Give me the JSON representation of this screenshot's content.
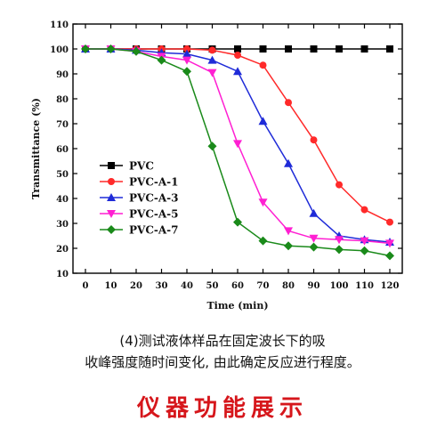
{
  "chart_data": {
    "type": "line",
    "xlabel": "Time (min)",
    "ylabel": "Transmittance (%)",
    "xlim": [
      0,
      120
    ],
    "ylim": [
      10,
      110
    ],
    "x_ticks": [
      0,
      10,
      20,
      30,
      40,
      50,
      60,
      70,
      80,
      90,
      100,
      110,
      120
    ],
    "y_ticks": [
      10,
      20,
      30,
      40,
      50,
      60,
      70,
      80,
      90,
      100,
      110
    ],
    "grid": false,
    "legend_position": "center-left",
    "x": [
      0,
      10,
      20,
      30,
      40,
      50,
      60,
      70,
      80,
      90,
      100,
      110,
      120
    ],
    "series": [
      {
        "name": "PVC",
        "color": "#000000",
        "marker": "square",
        "values": [
          100,
          100,
          100,
          100,
          100,
          100,
          100,
          100,
          100,
          100,
          100,
          100,
          100
        ]
      },
      {
        "name": "PVC-A-1",
        "color": "#ff2a2a",
        "marker": "circle",
        "values": [
          100,
          100,
          100,
          100,
          100,
          99.5,
          97.5,
          93.5,
          78.5,
          63.5,
          45.5,
          35.5,
          30.5
        ]
      },
      {
        "name": "PVC-A-3",
        "color": "#1f2bd8",
        "marker": "triangle-up",
        "values": [
          100,
          100,
          99.5,
          98.5,
          98,
          95.5,
          91,
          71,
          54,
          34,
          25,
          23.5,
          22.5
        ]
      },
      {
        "name": "PVC-A-5",
        "color": "#ff1fd2",
        "marker": "triangle-down",
        "values": [
          100,
          100,
          99,
          97,
          95.5,
          90.5,
          62,
          38.5,
          27,
          24,
          23.5,
          23,
          22
        ]
      },
      {
        "name": "PVC-A-7",
        "color": "#1a8a1a",
        "marker": "diamond",
        "values": [
          100,
          100,
          99,
          95.5,
          91,
          61,
          30.5,
          23,
          21,
          20.5,
          19.5,
          19,
          17
        ]
      }
    ]
  },
  "caption": {
    "line1": "(4)测试液体样品在固定波长下的吸",
    "line2": "收峰强度随时间变化, 由此确定反应进行程度。"
  },
  "banner": {
    "text": "仪器功能展示"
  }
}
